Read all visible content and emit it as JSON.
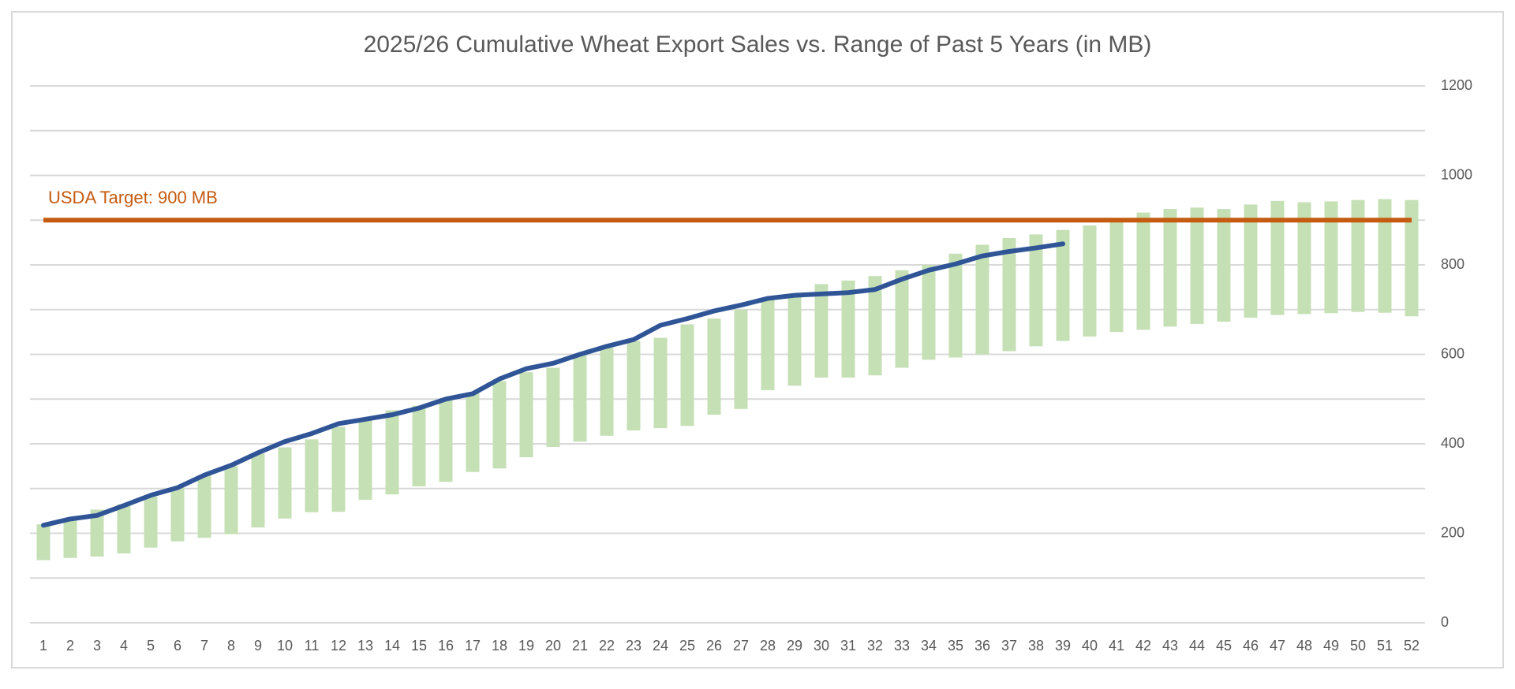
{
  "chart_data": {
    "type": "range-bar-line",
    "title": "2025/26 Cumulative Wheat Export Sales vs. Range of Past 5 Years (in MB)",
    "categories": [
      "1",
      "2",
      "3",
      "4",
      "5",
      "6",
      "7",
      "8",
      "9",
      "10",
      "11",
      "12",
      "13",
      "14",
      "15",
      "16",
      "17",
      "18",
      "19",
      "20",
      "21",
      "22",
      "23",
      "24",
      "25",
      "26",
      "27",
      "28",
      "29",
      "30",
      "31",
      "32",
      "33",
      "34",
      "35",
      "36",
      "37",
      "38",
      "39",
      "40",
      "41",
      "42",
      "43",
      "44",
      "45",
      "46",
      "47",
      "48",
      "49",
      "50",
      "51",
      "52"
    ],
    "ranges": {
      "color": "#c5e0b4",
      "low": [
        140,
        145,
        148,
        155,
        168,
        182,
        190,
        198,
        213,
        233,
        247,
        248,
        275,
        287,
        305,
        315,
        337,
        345,
        370,
        393,
        405,
        418,
        430,
        435,
        440,
        465,
        478,
        520,
        530,
        548,
        548,
        553,
        570,
        588,
        593,
        600,
        607,
        618,
        630,
        640,
        650,
        655,
        662,
        668,
        673,
        682,
        688,
        690,
        692,
        695,
        693,
        685
      ],
      "high": [
        220,
        232,
        253,
        265,
        282,
        302,
        330,
        350,
        378,
        392,
        410,
        438,
        458,
        475,
        485,
        500,
        515,
        540,
        560,
        570,
        598,
        615,
        630,
        637,
        667,
        680,
        700,
        722,
        730,
        757,
        765,
        775,
        788,
        800,
        825,
        845,
        860,
        868,
        878,
        888,
        905,
        917,
        925,
        928,
        925,
        935,
        943,
        940,
        942,
        945,
        947,
        945
      ]
    },
    "line": {
      "color": "#2f5597",
      "values": [
        218,
        232,
        240,
        262,
        285,
        302,
        330,
        352,
        380,
        405,
        423,
        445,
        455,
        465,
        480,
        500,
        512,
        545,
        568,
        580,
        600,
        618,
        633,
        665,
        680,
        697,
        710,
        725,
        732,
        735,
        738,
        745,
        768,
        788,
        802,
        820,
        830,
        838,
        847
      ]
    },
    "target": {
      "value": 900,
      "label": "USDA Target: 900 MB",
      "color": "#c55a11"
    },
    "ylim": [
      0,
      1200
    ],
    "yticks": [
      0,
      200,
      400,
      600,
      800,
      1000,
      1200
    ],
    "minor_yticks": [
      100,
      300,
      500,
      700,
      900,
      1100
    ],
    "y_axis_side": "right",
    "grid": true
  }
}
